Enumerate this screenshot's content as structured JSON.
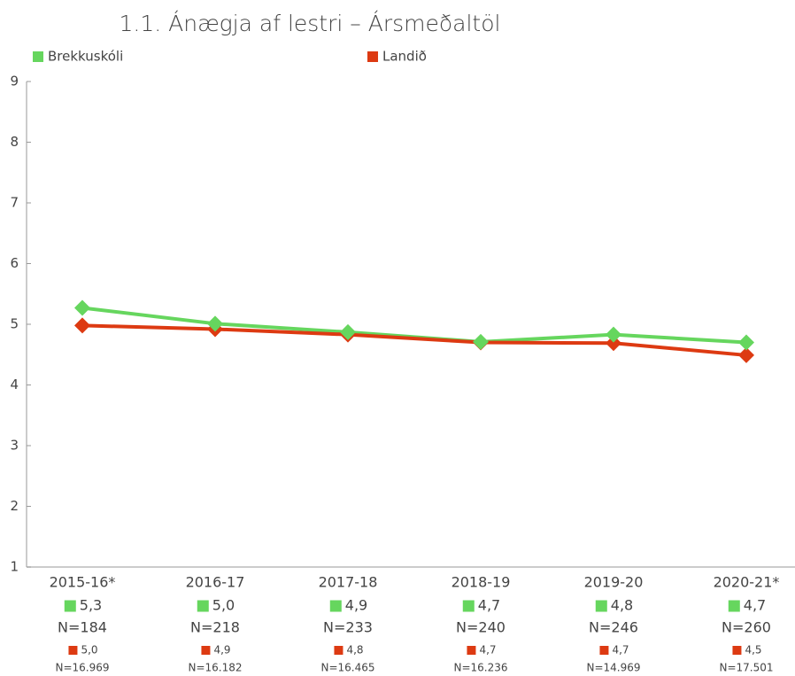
{
  "chart_data": {
    "type": "line",
    "title": "1.1. Ánægja af lestri – Ársmeðaltöl",
    "categories": [
      "2015-16*",
      "2016-17",
      "2017-18",
      "2018-19",
      "2019-20",
      "2020-21*"
    ],
    "series": [
      {
        "name": "Brekkuskóli",
        "color": "#66d65e",
        "values": [
          5.27,
          5.01,
          4.87,
          4.71,
          4.83,
          4.7
        ],
        "value_labels": [
          "5,3",
          "5,0",
          "4,9",
          "4,7",
          "4,8",
          "4,7"
        ],
        "n_labels": [
          "N=184",
          "N=218",
          "N=233",
          "N=240",
          "N=246",
          "N=260"
        ]
      },
      {
        "name": "Landið",
        "color": "#dd3a12",
        "values": [
          4.98,
          4.92,
          4.83,
          4.7,
          4.69,
          4.49
        ],
        "value_labels": [
          "5,0",
          "4,9",
          "4,8",
          "4,7",
          "4,7",
          "4,5"
        ],
        "n_labels": [
          "N=16.969",
          "N=16.182",
          "N=16.465",
          "N=16.236",
          "N=14.969",
          "N=17.501"
        ]
      }
    ],
    "ylim": [
      1,
      9
    ],
    "yticks": [
      1,
      2,
      3,
      4,
      5,
      6,
      7,
      8,
      9
    ]
  }
}
